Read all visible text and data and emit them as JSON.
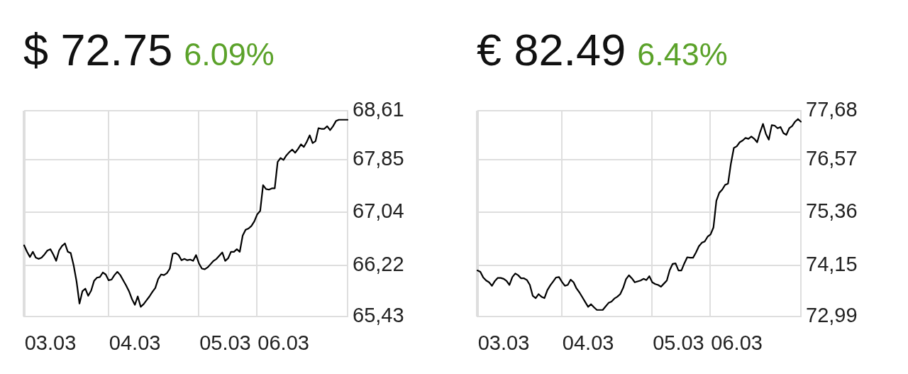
{
  "chart_data": [
    {
      "type": "line",
      "title": "$ 72.75",
      "subtitle": "6.09%",
      "categories": [
        null,
        null,
        null,
        null,
        null,
        null,
        null,
        null,
        null,
        "03.03",
        null,
        null,
        null,
        null,
        null,
        null,
        null,
        null,
        null,
        null,
        null,
        null,
        null,
        null,
        null,
        null,
        null,
        null,
        null,
        null,
        null,
        null,
        null,
        null,
        null,
        null,
        null,
        null,
        "04.03",
        null,
        null,
        null,
        null,
        null,
        null,
        null,
        null,
        null,
        null,
        null,
        null,
        null,
        null,
        null,
        null,
        null,
        null,
        null,
        null,
        null,
        null,
        null,
        null,
        null,
        null,
        null,
        null,
        null,
        null,
        "05.03",
        null,
        null,
        null,
        null,
        null,
        null,
        null,
        null,
        null,
        null,
        null,
        null,
        null,
        null,
        null,
        null,
        null,
        null,
        null,
        "06.03",
        null,
        null,
        null,
        null,
        null,
        null,
        null,
        null,
        null,
        null,
        null,
        null,
        null,
        null,
        null,
        null,
        null,
        null,
        null,
        null,
        null,
        null
      ],
      "values": [
        66.53,
        66.43,
        66.35,
        66.43,
        66.34,
        66.32,
        66.34,
        66.39,
        66.45,
        66.47,
        66.39,
        66.29,
        66.45,
        66.52,
        66.56,
        66.43,
        66.41,
        66.22,
        65.97,
        65.63,
        65.82,
        65.86,
        65.75,
        65.83,
        65.98,
        66.03,
        66.04,
        66.11,
        66.08,
        65.99,
        66.0,
        66.07,
        66.12,
        66.07,
        65.99,
        65.91,
        65.82,
        65.7,
        65.61,
        65.74,
        65.58,
        65.62,
        65.68,
        65.74,
        65.81,
        65.87,
        66.01,
        66.08,
        66.07,
        66.1,
        66.17,
        66.4,
        66.41,
        66.38,
        66.3,
        66.32,
        66.3,
        66.31,
        66.29,
        66.38,
        66.25,
        66.17,
        66.16,
        66.19,
        66.24,
        66.29,
        66.32,
        66.37,
        66.42,
        66.29,
        66.33,
        66.43,
        66.43,
        66.47,
        66.43,
        66.68,
        66.77,
        66.79,
        66.83,
        66.9,
        67.01,
        67.06,
        67.46,
        67.4,
        67.39,
        67.41,
        67.41,
        67.82,
        67.88,
        67.85,
        67.92,
        67.97,
        68.01,
        67.96,
        68.02,
        68.09,
        68.05,
        68.13,
        68.23,
        68.11,
        68.14,
        68.34,
        68.33,
        68.33,
        68.37,
        68.31,
        68.37,
        68.45,
        68.47,
        68.47,
        68.47,
        68.47
      ],
      "color": "#000000",
      "ylim": [
        65.43,
        68.61
      ],
      "yticks": [
        {
          "value": 65.43,
          "label": "65,43"
        },
        {
          "value": 66.22,
          "label": "66,22"
        },
        {
          "value": 67.04,
          "label": "67,04"
        },
        {
          "value": 67.85,
          "label": "67,85"
        },
        {
          "value": 68.61,
          "label": "68,61"
        }
      ],
      "grid": true,
      "marker": "none"
    },
    {
      "type": "line",
      "title": "€ 82.49",
      "subtitle": "6.43%",
      "categories": [
        null,
        null,
        null,
        null,
        null,
        null,
        null,
        null,
        null,
        "03.03",
        null,
        null,
        null,
        null,
        null,
        null,
        null,
        null,
        null,
        null,
        null,
        null,
        null,
        null,
        null,
        null,
        null,
        null,
        null,
        null,
        null,
        null,
        null,
        null,
        null,
        null,
        null,
        null,
        "04.03",
        null,
        null,
        null,
        null,
        null,
        null,
        null,
        null,
        null,
        null,
        null,
        null,
        null,
        null,
        null,
        null,
        null,
        null,
        null,
        null,
        null,
        null,
        null,
        null,
        null,
        null,
        null,
        null,
        null,
        null,
        "05.03",
        null,
        null,
        null,
        null,
        null,
        null,
        null,
        null,
        null,
        null,
        null,
        null,
        null,
        null,
        null,
        null,
        null,
        null,
        null,
        "06.03",
        null,
        null,
        null,
        null,
        null,
        null,
        null,
        null,
        null,
        null,
        null,
        null,
        null,
        null,
        null,
        null,
        null,
        null,
        null,
        null,
        null,
        null
      ],
      "values": [
        74.04,
        74.01,
        73.88,
        73.81,
        73.77,
        73.69,
        73.8,
        73.87,
        73.87,
        73.85,
        73.8,
        73.71,
        73.89,
        73.97,
        73.93,
        73.86,
        73.86,
        73.82,
        73.71,
        73.46,
        73.41,
        73.5,
        73.44,
        73.41,
        73.59,
        73.7,
        73.79,
        73.88,
        73.89,
        73.78,
        73.69,
        73.71,
        73.83,
        73.77,
        73.63,
        73.54,
        73.43,
        73.32,
        73.21,
        73.27,
        73.2,
        73.14,
        73.14,
        73.14,
        73.22,
        73.3,
        73.33,
        73.4,
        73.44,
        73.5,
        73.64,
        73.84,
        73.93,
        73.86,
        73.77,
        73.79,
        73.81,
        73.85,
        73.82,
        73.91,
        73.77,
        73.73,
        73.71,
        73.67,
        73.74,
        73.81,
        74.05,
        74.19,
        74.2,
        74.04,
        74.04,
        74.2,
        74.34,
        74.33,
        74.33,
        74.45,
        74.59,
        74.67,
        74.7,
        74.81,
        74.86,
        75.02,
        75.63,
        75.81,
        75.88,
        75.99,
        76.02,
        76.48,
        76.83,
        76.87,
        76.96,
        77.0,
        77.06,
        77.04,
        77.09,
        77.04,
        76.96,
        77.19,
        77.38,
        77.15,
        77.02,
        77.35,
        77.34,
        77.28,
        77.31,
        77.17,
        77.13,
        77.28,
        77.33,
        77.43,
        77.49,
        77.43
      ],
      "color": "#000000",
      "ylim": [
        72.99,
        77.68
      ],
      "yticks": [
        {
          "value": 72.99,
          "label": "72,99"
        },
        {
          "value": 74.15,
          "label": "74,15"
        },
        {
          "value": 75.36,
          "label": "75,36"
        },
        {
          "value": 76.57,
          "label": "76,57"
        },
        {
          "value": 77.68,
          "label": "77,68"
        }
      ],
      "grid": true,
      "marker": "none"
    }
  ]
}
